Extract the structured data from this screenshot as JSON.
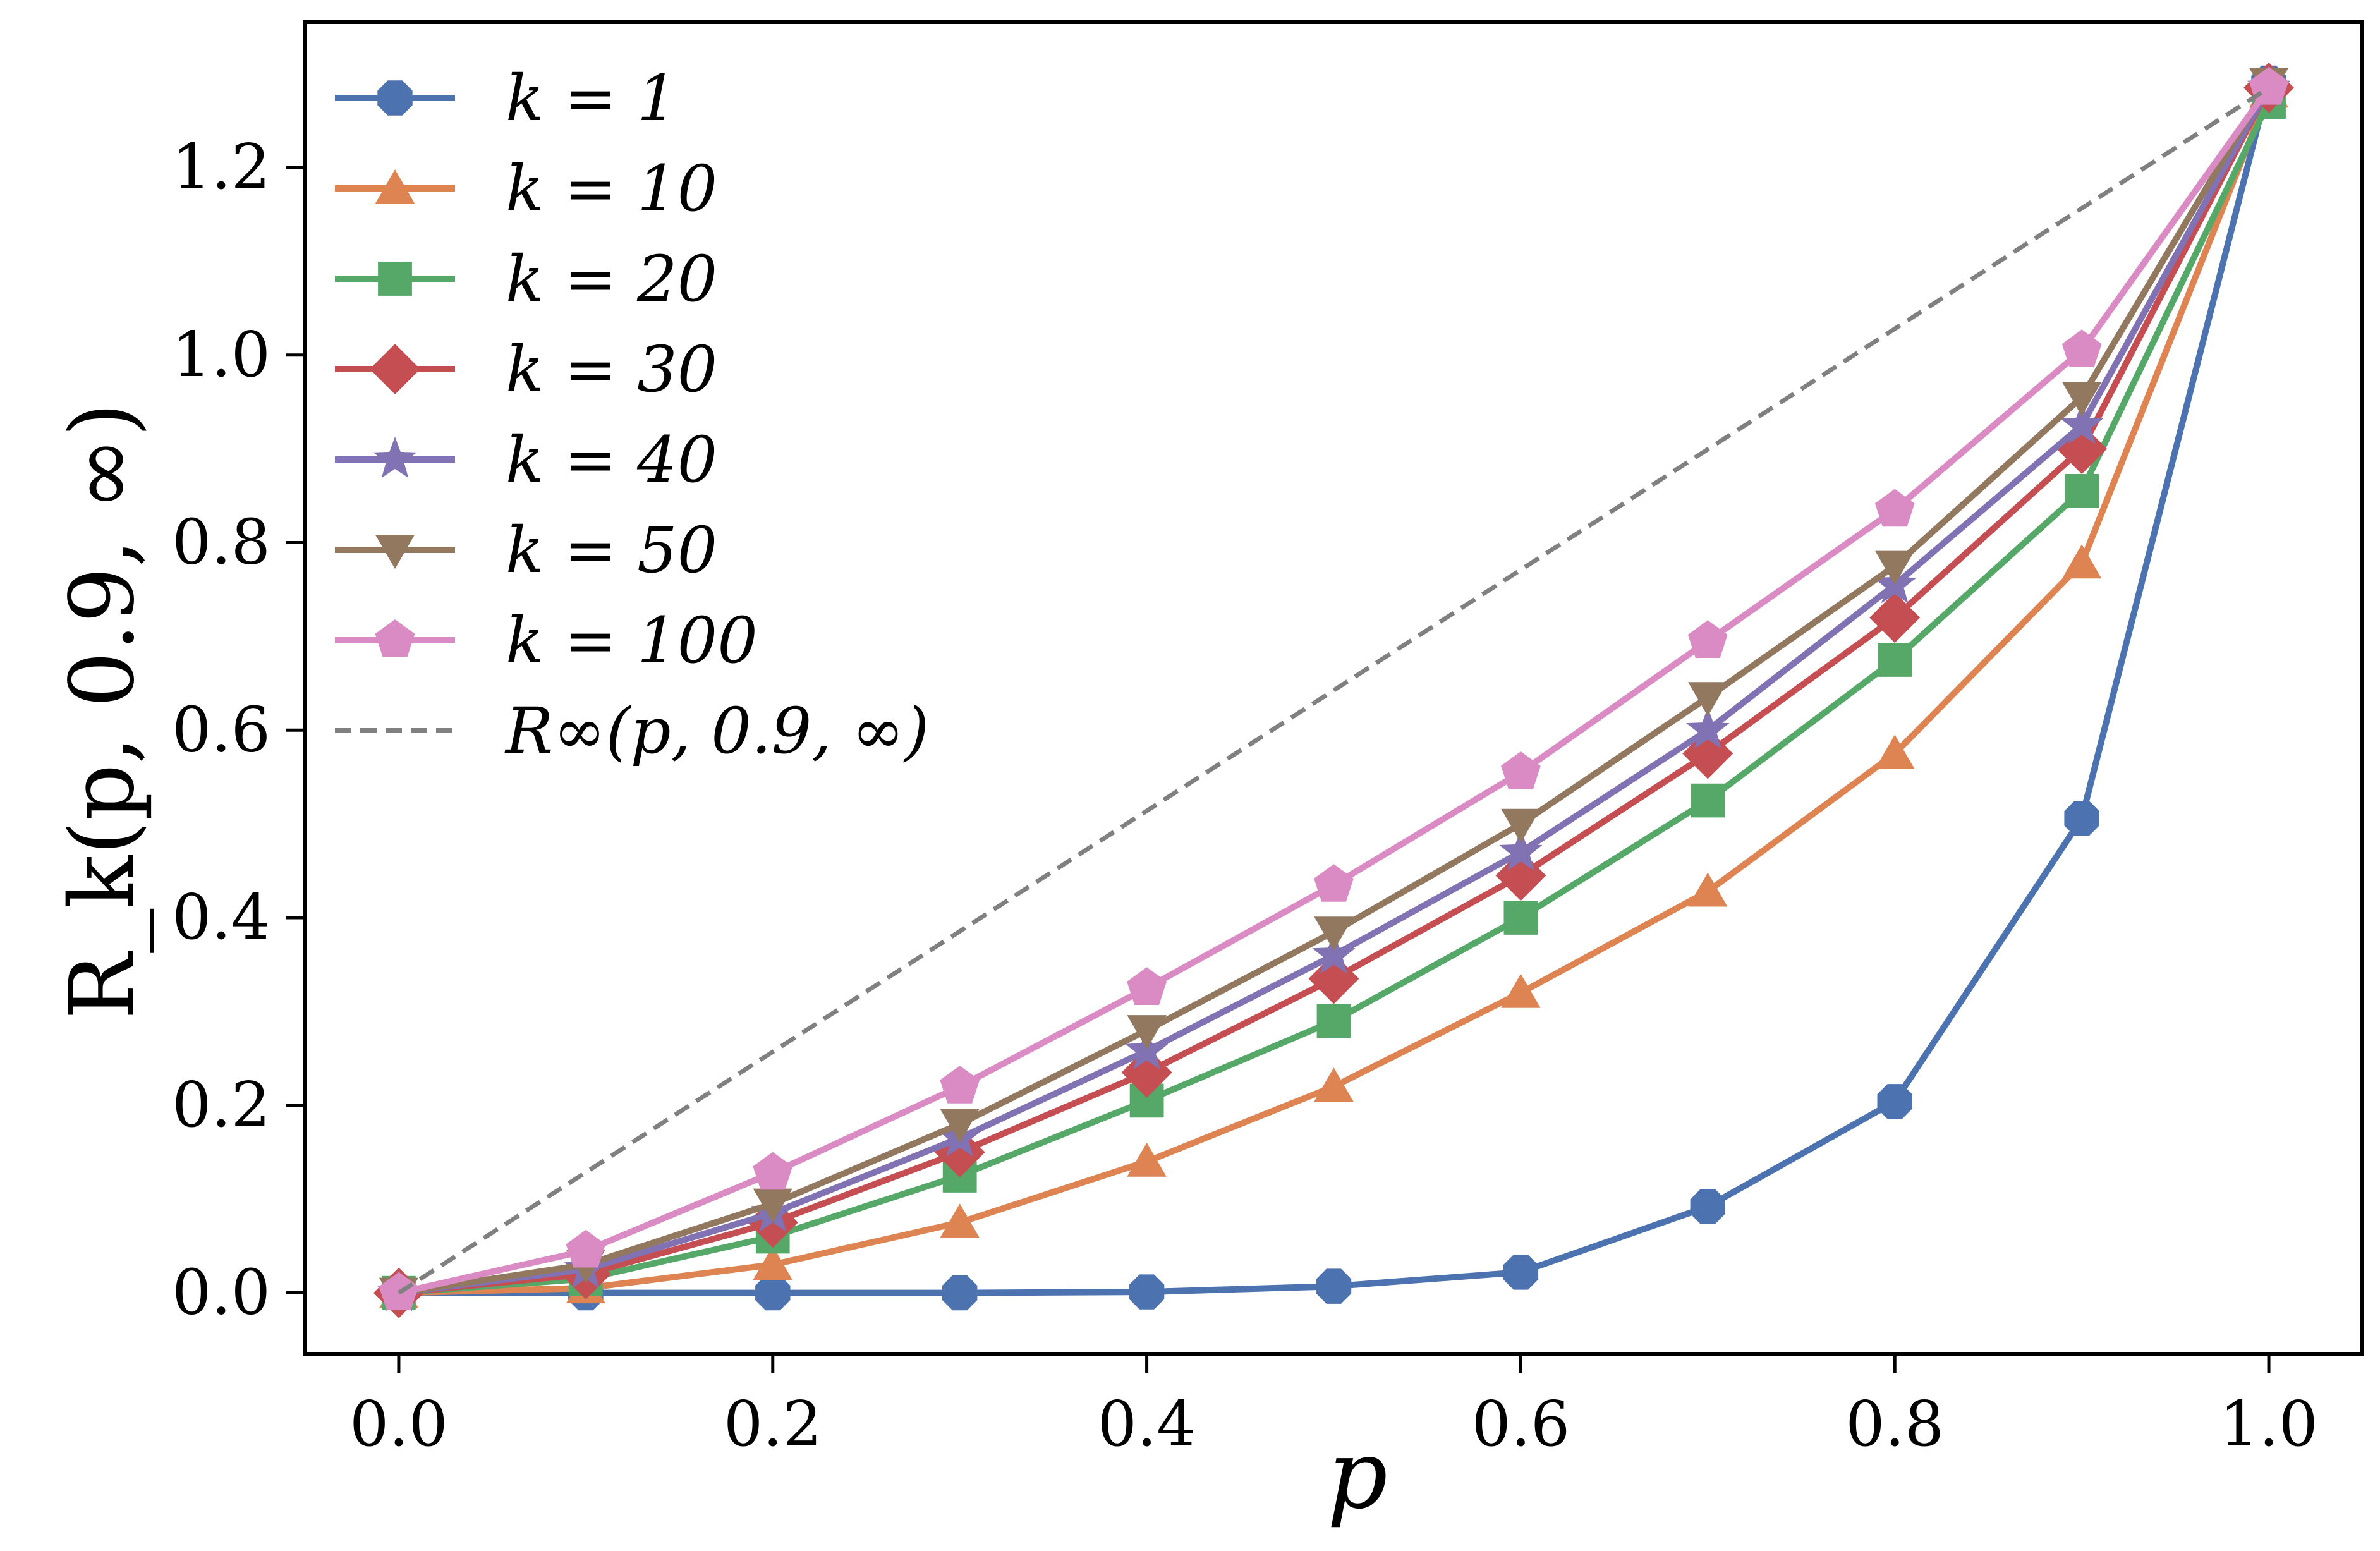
{
  "chart_data": {
    "type": "line",
    "title": "",
    "xlabel": "p",
    "ylabel": "R_k(p, 0.9, ∞)",
    "xlim": [
      -0.05,
      1.05
    ],
    "ylim": [
      -0.065,
      1.355
    ],
    "x_ticks": [
      "0.0",
      "0.2",
      "0.4",
      "0.6",
      "0.8",
      "1.0"
    ],
    "y_ticks": [
      "0.0",
      "0.2",
      "0.4",
      "0.6",
      "0.8",
      "1.0",
      "1.2"
    ],
    "x": [
      0.0,
      0.1,
      0.2,
      0.3,
      0.4,
      0.5,
      0.6,
      0.7,
      0.8,
      0.9,
      1.0
    ],
    "legend_position": "top-left",
    "grid": false,
    "series": [
      {
        "name": "k = 1",
        "color": "#4c72b0",
        "marker": "octagon",
        "values": [
          0.0,
          0.0,
          0.0,
          0.0,
          0.001,
          0.007,
          0.022,
          0.092,
          0.204,
          0.506,
          1.29
        ]
      },
      {
        "name": "k = 10",
        "color": "#dd8452",
        "marker": "triangle-up",
        "values": [
          0.0,
          0.005,
          0.03,
          0.075,
          0.14,
          0.22,
          0.32,
          0.428,
          0.575,
          0.778,
          1.28
        ]
      },
      {
        "name": "k = 20",
        "color": "#55a868",
        "marker": "square",
        "values": [
          0.0,
          0.015,
          0.06,
          0.125,
          0.205,
          0.29,
          0.4,
          0.525,
          0.675,
          0.855,
          1.27
        ]
      },
      {
        "name": "k = 30",
        "color": "#c44e52",
        "marker": "diamond",
        "values": [
          0.0,
          0.02,
          0.075,
          0.15,
          0.235,
          0.335,
          0.445,
          0.575,
          0.72,
          0.9,
          1.285
        ]
      },
      {
        "name": "k = 40",
        "color": "#8172b3",
        "marker": "star",
        "values": [
          0.0,
          0.025,
          0.085,
          0.165,
          0.258,
          0.36,
          0.47,
          0.6,
          0.755,
          0.925,
          1.285
        ]
      },
      {
        "name": "k = 50",
        "color": "#937860",
        "marker": "triangle-down",
        "values": [
          0.0,
          0.03,
          0.095,
          0.18,
          0.28,
          0.385,
          0.5,
          0.635,
          0.775,
          0.955,
          1.29
        ]
      },
      {
        "name": "k = 100",
        "color": "#da8bc3",
        "marker": "pentagon",
        "values": [
          0.0,
          0.045,
          0.128,
          0.22,
          0.325,
          0.435,
          0.555,
          0.695,
          0.835,
          1.005,
          1.285
        ]
      },
      {
        "name": "R∞(p, 0.9, ∞)",
        "color": "#808080",
        "marker": "none",
        "dashed": true,
        "values": [
          0.0,
          0.1285,
          0.257,
          0.3855,
          0.514,
          0.6425,
          0.771,
          0.8995,
          1.028,
          1.1565,
          1.285
        ]
      }
    ]
  }
}
